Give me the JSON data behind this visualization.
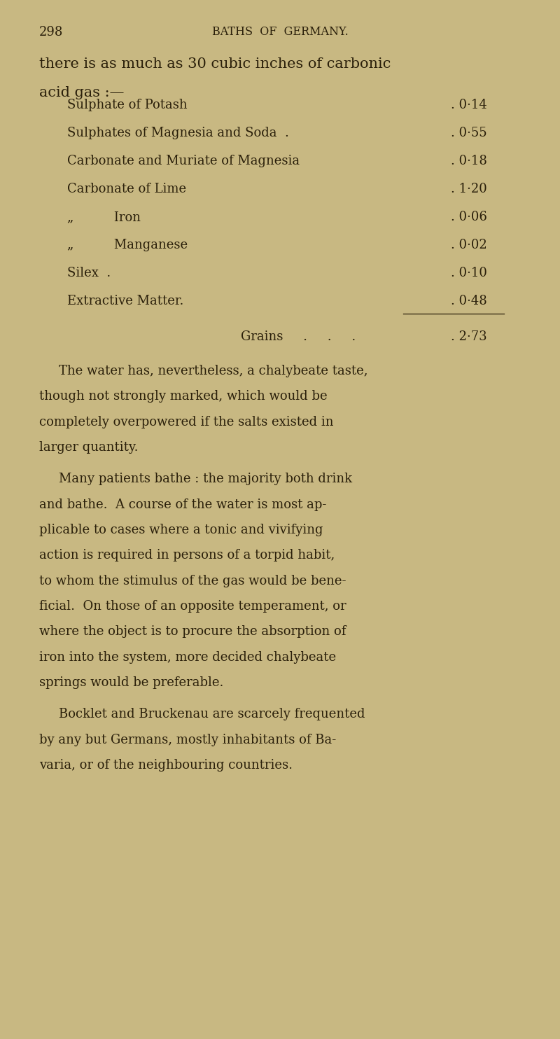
{
  "bg_color": "#c8b882",
  "page_number": "298",
  "header": "BATHS  OF  GERMANY.",
  "intro_line1": "there is as much as 30 cubic inches of carbonic",
  "intro_line2": "acid gas :—",
  "text_color": "#2a1f0a",
  "fig_width": 8.0,
  "fig_height": 14.84,
  "table_rows": [
    [
      "Sulphate of Potash",
      "0·14"
    ],
    [
      "Sulphates of Magnesia and Soda  .",
      "0·55"
    ],
    [
      "Carbonate and Muriate of Magnesia",
      "0·18"
    ],
    [
      "Carbonate of Lime",
      "1·20"
    ],
    [
      "„          Iron",
      "0·06"
    ],
    [
      "„          Manganese",
      "0·02"
    ],
    [
      "Silex  .",
      "0·10"
    ],
    [
      "Extractive Matter.",
      "0·48"
    ]
  ],
  "grains_label": "Grains     .     .     .",
  "grains_value": "2·73",
  "para1_lines": [
    "The water has, nevertheless, a chalybeate taste,",
    "though not strongly marked, which would be",
    "completely overpowered if the salts existed in",
    "larger quantity."
  ],
  "para2_lines": [
    "Many patients bathe : the majority both drink",
    "and bathe.  A course of the water is most ap-",
    "plicable to cases where a tonic and vivifying",
    "action is required in persons of a torpid habit,",
    "to whom the stimulus of the gas would be bene-",
    "ficial.  On those of an opposite temperament, or",
    "where the object is to procure the absorption of",
    "iron into the system, more decided chalybeate",
    "springs would be preferable."
  ],
  "para3_lines": [
    "Bocklet and Bruckenau are scarcely frequented",
    "by any but Germans, mostly inhabitants of Ba-",
    "varia, or of the neighbouring countries."
  ]
}
